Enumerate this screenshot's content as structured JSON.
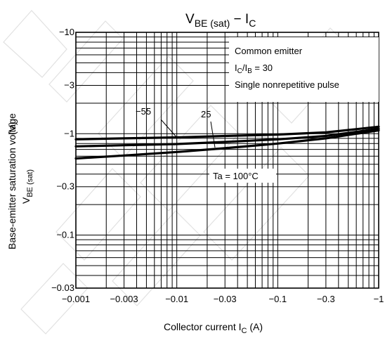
{
  "chart_data": {
    "type": "line",
    "title_main": "V",
    "title_sub": "BE (sat)",
    "title_dash": " − I",
    "title_sub2": "C",
    "xlabel_main": "Collector current   I",
    "xlabel_sub": "C",
    "xlabel_unit": "   (A)",
    "ylabel_line1": "Base-emitter saturation voltage",
    "ylabel_line2_main": "V",
    "ylabel_line2_sub": "BE (sat)",
    "ylabel_unit": "(V)",
    "x_scale": "log",
    "y_scale": "log",
    "xlim": [
      -0.001,
      -1
    ],
    "ylim": [
      -0.03,
      -10
    ],
    "x_ticks": [
      {
        "value": -0.001,
        "label": "−0.001"
      },
      {
        "value": -0.003,
        "label": "−0.003"
      },
      {
        "value": -0.01,
        "label": "−0.01"
      },
      {
        "value": -0.03,
        "label": "−0.03"
      },
      {
        "value": -0.1,
        "label": "−0.1"
      },
      {
        "value": -0.3,
        "label": "−0.3"
      },
      {
        "value": -1,
        "label": "−1"
      }
    ],
    "y_ticks": [
      {
        "value": -10,
        "label": "−10"
      },
      {
        "value": -3,
        "label": "−3"
      },
      {
        "value": -1,
        "label": "−1"
      },
      {
        "value": -0.3,
        "label": "−0.3"
      },
      {
        "value": -0.1,
        "label": "−0.1"
      },
      {
        "value": -0.03,
        "label": "−0.03"
      }
    ],
    "grid": true,
    "conditions": {
      "line1": "Common emitter",
      "line2_a": "I",
      "line2_sub_a": "C",
      "line2_b": "/I",
      "line2_sub_b": "B",
      "line2_c": " = 30",
      "line3": "Single nonrepetitive pulse"
    },
    "series": [
      {
        "name": "−55",
        "x": [
          -0.001,
          -0.003,
          -0.01,
          -0.03,
          -0.1,
          -0.3,
          -1
        ],
        "y": [
          -0.88,
          -0.9,
          -0.92,
          -0.95,
          -0.98,
          -1.03,
          -1.17
        ]
      },
      {
        "name": "25",
        "x": [
          -0.001,
          -0.003,
          -0.01,
          -0.03,
          -0.1,
          -0.3,
          -1
        ],
        "y": [
          -0.75,
          -0.77,
          -0.79,
          -0.83,
          -0.88,
          -0.95,
          -1.12
        ]
      },
      {
        "name": "Ta = 100°C",
        "x": [
          -0.001,
          -0.003,
          -0.01,
          -0.03,
          -0.1,
          -0.3,
          -1
        ],
        "y": [
          -0.57,
          -0.61,
          -0.66,
          -0.72,
          -0.8,
          -0.9,
          -1.08
        ]
      }
    ]
  }
}
